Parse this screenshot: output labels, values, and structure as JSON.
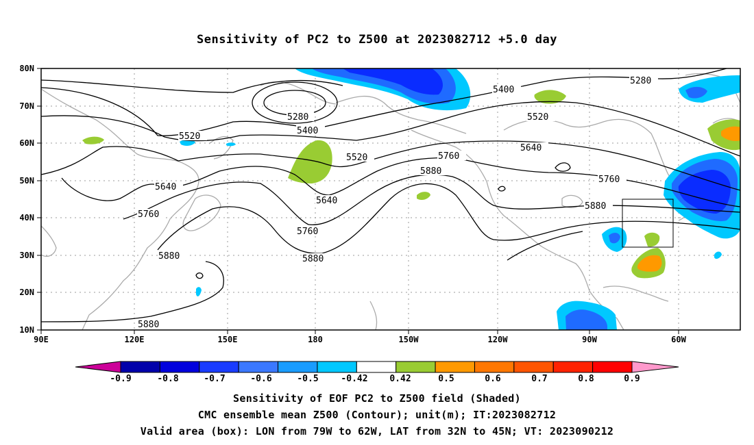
{
  "title": "Sensitivity of PC2 to Z500 at 2023082712 +5.0 day",
  "map": {
    "lat_labels": [
      "80N",
      "70N",
      "60N",
      "50N",
      "40N",
      "30N",
      "20N",
      "10N"
    ],
    "lon_labels": [
      "90E",
      "120E",
      "150E",
      "180",
      "150W",
      "120W",
      "90W",
      "60W"
    ],
    "contour_labels": [
      "5280",
      "5280",
      "5400",
      "5400",
      "5520",
      "5520",
      "5520",
      "5640",
      "5640",
      "5640",
      "5760",
      "5760",
      "5760",
      "5760",
      "5880",
      "5880",
      "5880",
      "5880",
      "5880"
    ],
    "shade_colors": {
      "strong_negative": "#0a2cff",
      "medium_negative": "#1f6bff",
      "weak_negative": "#00c8ff",
      "weak_positive": "#99cc33",
      "medium_positive": "#ff9900"
    },
    "valid_box": {
      "lon_min": "79W",
      "lon_max": "62W",
      "lat_min": "32N",
      "lat_max": "45N"
    }
  },
  "colorbar": {
    "labels": [
      "-0.9",
      "-0.8",
      "-0.7",
      "-0.6",
      "-0.5",
      "-0.42",
      "0.42",
      "0.5",
      "0.6",
      "0.7",
      "0.8",
      "0.9"
    ],
    "colors": [
      "#cc0099",
      "#0000aa",
      "#0000dd",
      "#1a3cff",
      "#3b78ff",
      "#1a9cff",
      "#00c8ff",
      "#ffffff",
      "#99cc33",
      "#ff9900",
      "#ff7700",
      "#ff5500",
      "#ff2200",
      "#ff0000",
      "#ff99cc"
    ]
  },
  "captions": [
    "Sensitivity of EOF PC2 to Z500 field (Shaded)",
    "CMC ensemble mean Z500 (Contour); unit(m); IT:2023082712",
    "Valid area (box): LON from 79W to 62W, LAT from 32N to 45N; VT: 2023090212"
  ]
}
